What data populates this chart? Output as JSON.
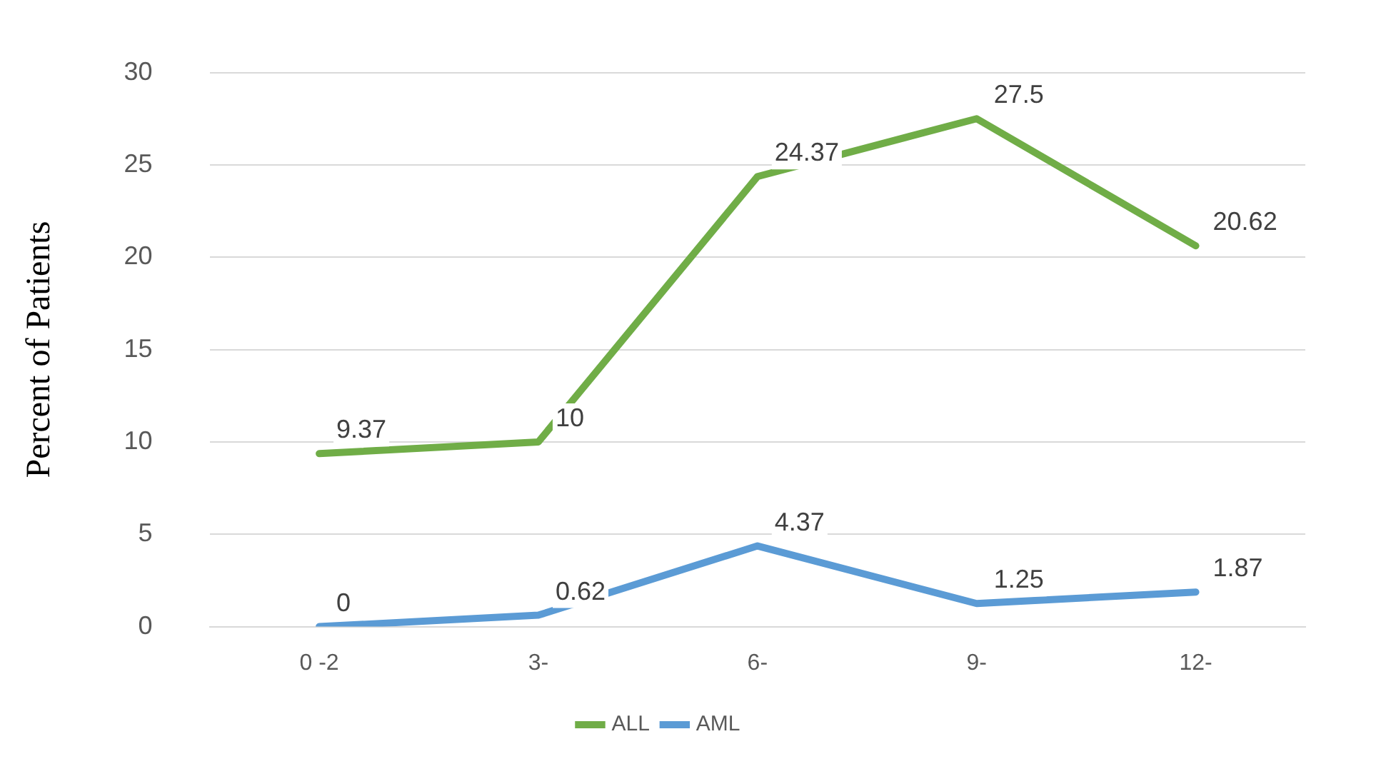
{
  "chart_data": {
    "type": "line",
    "ylabel": "Percent of Patients",
    "categories": [
      "0 -2",
      "3-",
      "6-",
      "9-",
      "12-"
    ],
    "series": [
      {
        "name": "ALL",
        "color": "#70ad47",
        "values": [
          9.37,
          10,
          24.37,
          27.5,
          20.62
        ]
      },
      {
        "name": "AML",
        "color": "#5b9bd5",
        "values": [
          0,
          0.62,
          4.37,
          1.25,
          1.87
        ]
      }
    ],
    "ylim": [
      0,
      30
    ],
    "yticks": [
      0,
      5,
      10,
      15,
      20,
      25,
      30
    ],
    "grid": "y",
    "legend": "bottom",
    "data_labels": true,
    "marker": "none",
    "line_style": "solid"
  }
}
